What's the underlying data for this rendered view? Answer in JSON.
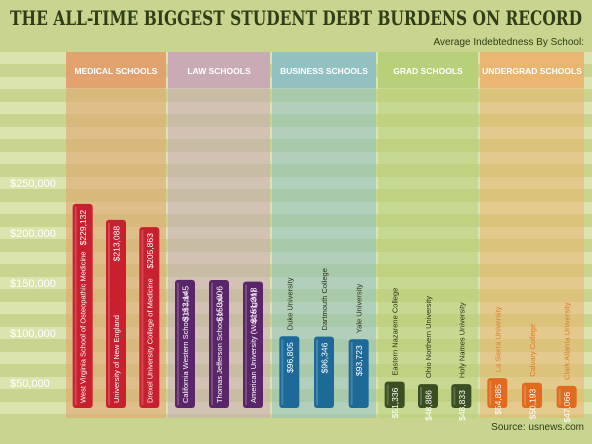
{
  "chart_data": {
    "type": "bar",
    "title": "THE ALL-TIME BIGGEST STUDENT DEBT BURDENS ON RECORD",
    "subtitle": "Average Indebtedness By School:",
    "source": "Source: usnews.com",
    "ylim": [
      25000,
      250000
    ],
    "y_ticks": [
      "$250,000",
      "$200,000",
      "$150,000",
      "$100,000",
      "$50,000"
    ],
    "y_tick_values": [
      250000,
      200000,
      150000,
      100000,
      50000
    ],
    "groups": [
      {
        "name": "MEDICAL SCHOOLS",
        "panel_color": "#e3a06c",
        "bar_color": "#c8202e",
        "value_label_color": "#ffffff",
        "bars": [
          {
            "label": "West Virginia School of Osteopathic Medicine",
            "value": 229132,
            "value_label": "$229,132"
          },
          {
            "label": "University of New England",
            "value": 213088,
            "value_label": "$213,088"
          },
          {
            "label": "Drexel University College of Medicine",
            "value": 205863,
            "value_label": "$205,863"
          }
        ]
      },
      {
        "name": "LAW SCHOOLS",
        "panel_color": "#c8a8b6",
        "bar_color": "#5a2669",
        "value_label_color": "#ffffff",
        "bars": [
          {
            "label": "California Western School of Law",
            "value": 153145,
            "value_label": "$153,145"
          },
          {
            "label": "Thomas Jefferson School of Law",
            "value": 153006,
            "value_label": "$153,006"
          },
          {
            "label": "American University (Washington)",
            "value": 151318,
            "value_label": "$151,318"
          }
        ]
      },
      {
        "name": "BUSINESS SCHOOLS",
        "panel_color": "#8ec0c2",
        "bar_color": "#1d6a98",
        "value_label_color": "#ffffff",
        "bars": [
          {
            "label": "Duke University",
            "value": 96805,
            "value_label": "$96,805"
          },
          {
            "label": "Dartmouth College",
            "value": 96346,
            "value_label": "$96,346"
          },
          {
            "label": "Yale University",
            "value": 93723,
            "value_label": "$93,723"
          }
        ]
      },
      {
        "name": "GRAD SCHOOLS",
        "panel_color": "#b6cf78",
        "bar_color": "#3a4f22",
        "value_label_color": "#ffffff",
        "label_color": "#2a3618",
        "bars": [
          {
            "label": "Eastern Nazarene College",
            "value": 51336,
            "value_label": "$51,336"
          },
          {
            "label": "Ohio Northern University",
            "value": 48886,
            "value_label": "$48,886"
          },
          {
            "label": "Holy Names University",
            "value": 48833,
            "value_label": "$48,833"
          }
        ]
      },
      {
        "name": "UNDERGRAD SCHOOLS",
        "panel_color": "#e9b56e",
        "bar_color": "#e16a1e",
        "value_label_color": "#ffffff",
        "label_color": "#e07a2a",
        "bars": [
          {
            "label": "La Sierra University",
            "value": 54885,
            "value_label": "$54,885"
          },
          {
            "label": "Calvary College",
            "value": 50193,
            "value_label": "$50,193"
          },
          {
            "label": "Clark Atlanta University",
            "value": 47066,
            "value_label": "$47,066"
          }
        ]
      }
    ],
    "grid": true,
    "legend": "none"
  },
  "colors": {
    "background": "#c9d48e",
    "stripe_light": "#e9eecb",
    "title": "#2f3e16",
    "axis_text": "#ffffff"
  }
}
